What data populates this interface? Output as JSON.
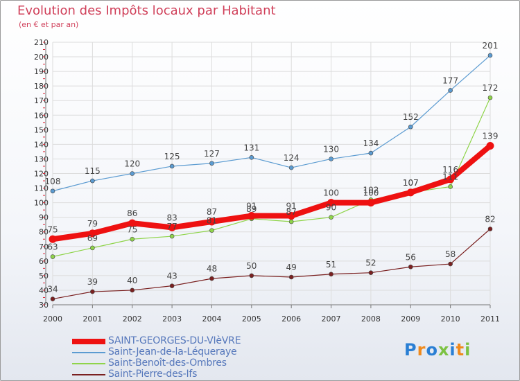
{
  "header": {
    "title": "Evolution des Impôts locaux par Habitant",
    "subtitle": "(en € et par an)"
  },
  "logo": {
    "text": "Proxiti",
    "letters": [
      {
        "ch": "P",
        "color": "#2a7fd4"
      },
      {
        "ch": "r",
        "color": "#f08a1c"
      },
      {
        "ch": "o",
        "color": "#2a7fd4"
      },
      {
        "ch": "x",
        "color": "#7cc242"
      },
      {
        "ch": "i",
        "color": "#2a7fd4"
      },
      {
        "ch": "t",
        "color": "#f08a1c"
      },
      {
        "ch": "i",
        "color": "#7cc242"
      }
    ]
  },
  "chart_data": {
    "type": "line",
    "title": "Evolution des Impôts locaux par Habitant",
    "subtitle": "(en € et par an)",
    "x": [
      "2000",
      "2001",
      "2002",
      "2003",
      "2004",
      "2005",
      "2006",
      "2007",
      "2008",
      "2009",
      "2010",
      "2011"
    ],
    "ylim": [
      30,
      210
    ],
    "yticks": [
      30,
      40,
      50,
      60,
      70,
      80,
      90,
      100,
      110,
      120,
      130,
      140,
      150,
      160,
      170,
      180,
      190,
      200,
      210
    ],
    "grid": true,
    "legend_position": "bottom-left",
    "series": [
      {
        "name": "SAINT-GEORGES-DU-VIèVRE",
        "color": "#ee1111",
        "style": "thick",
        "values": [
          75,
          79,
          86,
          83,
          87,
          91,
          91,
          100,
          100,
          107,
          116,
          139
        ]
      },
      {
        "name": "Saint-Jean-de-la-Léqueraye",
        "color": "#5b9bd1",
        "style": "thin",
        "values": [
          108,
          115,
          120,
          125,
          127,
          131,
          124,
          130,
          134,
          152,
          177,
          201
        ]
      },
      {
        "name": "Saint-Benoît-des-Ombres",
        "color": "#8fd44a",
        "style": "thin",
        "values": [
          63,
          69,
          75,
          77,
          81,
          89,
          87,
          90,
          102,
          107,
          111,
          172
        ]
      },
      {
        "name": "Saint-Pierre-des-Ifs",
        "color": "#7a2020",
        "style": "thin",
        "values": [
          34,
          39,
          40,
          43,
          48,
          50,
          49,
          51,
          52,
          56,
          58,
          82
        ]
      }
    ]
  }
}
